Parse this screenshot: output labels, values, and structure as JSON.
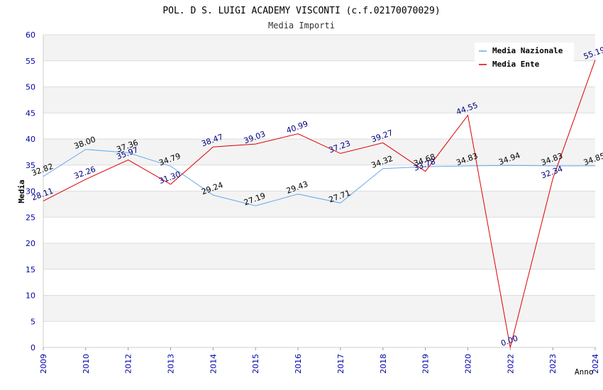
{
  "chart_data": {
    "type": "line",
    "title": "POL. D S. LUIGI ACADEMY VISCONTI (c.f.02170070029)",
    "subtitle": "Media Importi",
    "xlabel": "Anno",
    "ylabel": "Media",
    "categories": [
      "2009",
      "2010",
      "2012",
      "2013",
      "2014",
      "2015",
      "2016",
      "2017",
      "2018",
      "2019",
      "2020",
      "2022",
      "2023",
      "2024"
    ],
    "ylim": [
      0,
      60
    ],
    "yticks": [
      0,
      5,
      10,
      15,
      20,
      25,
      30,
      35,
      40,
      45,
      50,
      55,
      60
    ],
    "grid": true,
    "legend_position": "top-right",
    "series": [
      {
        "name": "Media Nazionale",
        "color": "#66aaee",
        "values": [
          32.82,
          38.0,
          37.36,
          34.79,
          29.24,
          27.19,
          29.43,
          27.71,
          34.32,
          34.68,
          34.83,
          34.94,
          34.83,
          34.85
        ],
        "labels": [
          "32.82",
          "38.00",
          "37.36",
          "34.79",
          "29.24",
          "27.19",
          "29.43",
          "27.71",
          "34.32",
          "34.68",
          "34.83",
          "34.94",
          "34.83",
          "34.85"
        ],
        "label_color": "#000000"
      },
      {
        "name": "Media Ente",
        "color": "#dd0000",
        "values": [
          28.11,
          32.26,
          35.97,
          31.3,
          38.47,
          39.03,
          40.99,
          37.23,
          39.27,
          33.78,
          44.55,
          0.0,
          32.34,
          55.19
        ],
        "labels": [
          "28.11",
          "32.26",
          "35.97",
          "31.30",
          "38.47",
          "39.03",
          "40.99",
          "37.23",
          "39.27",
          "33.78",
          "44.55",
          "0.00",
          "32.34",
          "55.19"
        ],
        "label_color": "#000080"
      }
    ]
  }
}
